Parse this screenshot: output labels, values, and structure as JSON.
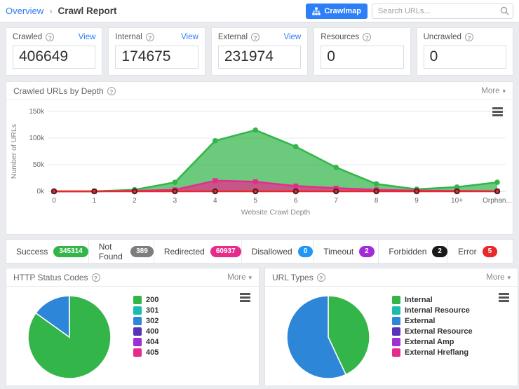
{
  "topbar": {
    "breadcrumb": {
      "parent": "Overview",
      "current": "Crawl Report"
    },
    "crawlmap_button": "Crawlmap",
    "search_placeholder": "Search URLs..."
  },
  "cards": [
    {
      "label": "Crawled",
      "value": "406649",
      "view_label": "View"
    },
    {
      "label": "Internal",
      "value": "174675",
      "view_label": "View"
    },
    {
      "label": "External",
      "value": "231974",
      "view_label": "View"
    },
    {
      "label": "Resources",
      "value": "0"
    },
    {
      "label": "Uncrawled",
      "value": "0"
    }
  ],
  "depth_panel": {
    "title": "Crawled URLs by Depth",
    "more_label": "More"
  },
  "status_badges": [
    {
      "label": "Success",
      "count": "345314",
      "color": "#33b54a"
    },
    {
      "label": "Not Found",
      "count": "389",
      "color": "#7d7d7d"
    },
    {
      "label": "Redirected",
      "count": "60937",
      "color": "#e72b8d"
    },
    {
      "label": "Disallowed",
      "count": "0",
      "color": "#2196f3"
    },
    {
      "label": "Timeout",
      "count": "2",
      "color": "#a22bd6"
    },
    {
      "label": "Forbidden",
      "count": "2",
      "color": "#1a1a1a"
    },
    {
      "label": "Error",
      "count": "5",
      "color": "#e8282b"
    }
  ],
  "http_panel": {
    "title": "HTTP Status Codes",
    "more_label": "More"
  },
  "url_types_panel": {
    "title": "URL Types",
    "more_label": "More"
  },
  "chart_data": [
    {
      "type": "area",
      "title": "Crawled URLs by Depth",
      "xlabel": "Website Crawl Depth",
      "ylabel": "Number of URLs",
      "categories": [
        "0",
        "1",
        "2",
        "3",
        "4",
        "5",
        "6",
        "7",
        "8",
        "9",
        "10+",
        "Orphan..."
      ],
      "ylim": [
        0,
        150000
      ],
      "yticks": [
        "0k",
        "50k",
        "100k",
        "150k"
      ],
      "grid": true,
      "legend_position": "none",
      "series": [
        {
          "name": "Success",
          "color": "#33b54a",
          "marker": "circle",
          "values": [
            0,
            0,
            3000,
            17000,
            95000,
            115000,
            84000,
            45000,
            14000,
            4000,
            8000,
            17000
          ]
        },
        {
          "name": "Redirected",
          "color": "#e72b8d",
          "marker": "square",
          "values": [
            0,
            0,
            1000,
            3000,
            20000,
            18000,
            10000,
            6000,
            3000,
            1500,
            800,
            300
          ]
        },
        {
          "name": "Error",
          "color": "#e8282b",
          "marker": "ring",
          "values": [
            0,
            0,
            0,
            0,
            0,
            0,
            0,
            0,
            0,
            0,
            0,
            0
          ]
        }
      ]
    },
    {
      "type": "pie",
      "title": "HTTP Status Codes",
      "legend": [
        "200",
        "301",
        "302",
        "400",
        "404",
        "405"
      ],
      "colors": [
        "#33b54a",
        "#18bdab",
        "#2e86d8",
        "#5733b9",
        "#9e2fd0",
        "#e72b8d"
      ],
      "values": [
        84.9,
        0.05,
        15.0,
        0.0,
        0.05,
        0.0
      ],
      "legend_position": "right"
    },
    {
      "type": "pie",
      "title": "URL Types",
      "legend": [
        "Internal",
        "Internal Resource",
        "External",
        "External Resource",
        "External Amp",
        "External Hreflang"
      ],
      "colors": [
        "#33b54a",
        "#18bdab",
        "#2e86d8",
        "#5733b9",
        "#9e2fd0",
        "#e72b8d"
      ],
      "values": [
        43.0,
        0.0,
        57.0,
        0.0,
        0.0,
        0.0
      ],
      "legend_position": "right"
    }
  ]
}
